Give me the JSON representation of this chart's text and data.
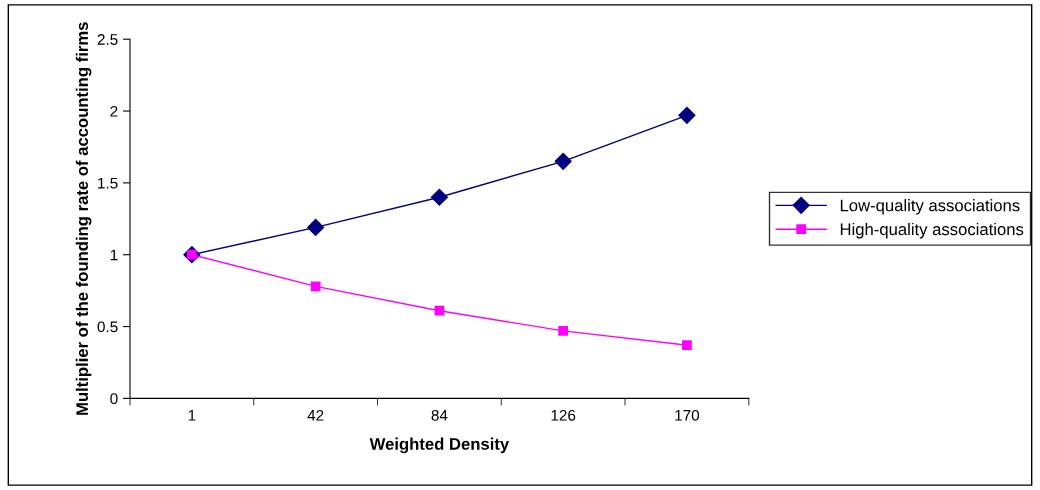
{
  "chart_data": {
    "type": "line",
    "xlabel": "Weighted Density",
    "ylabel": "Multiplier of the founding rate of accounting firms",
    "categories": [
      "1",
      "42",
      "84",
      "126",
      "170"
    ],
    "series": [
      {
        "name": "Low-quality associations",
        "color": "#000080",
        "values": [
          1.0,
          1.19,
          1.4,
          1.65,
          1.97
        ],
        "marker": "diamond"
      },
      {
        "name": "High-quality associations",
        "color": "#ff00ff",
        "values": [
          1.0,
          0.78,
          0.61,
          0.47,
          0.37
        ],
        "marker": "square"
      }
    ],
    "ylim": [
      0,
      2.5
    ],
    "yticks": [
      0,
      0.5,
      1,
      1.5,
      2,
      2.5
    ],
    "grid": false,
    "legend": "right",
    "line_style": "solid"
  }
}
